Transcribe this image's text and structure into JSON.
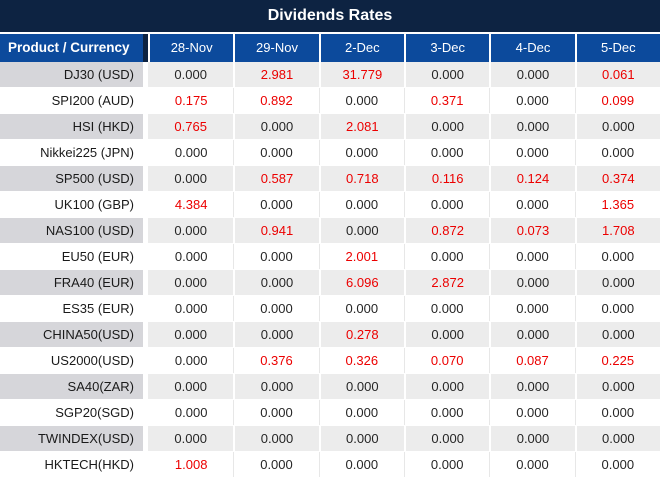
{
  "title": "Dividends Rates",
  "table": {
    "header": [
      "Product / Currency",
      "28-Nov",
      "29-Nov",
      "2-Dec",
      "3-Dec",
      "4-Dec",
      "5-Dec"
    ],
    "rows": [
      {
        "product": "DJ30 (USD)",
        "values": [
          "0.000",
          "2.981",
          "31.779",
          "0.000",
          "0.000",
          "0.061"
        ]
      },
      {
        "product": "SPI200 (AUD)",
        "values": [
          "0.175",
          "0.892",
          "0.000",
          "0.371",
          "0.000",
          "0.099"
        ]
      },
      {
        "product": "HSI (HKD)",
        "values": [
          "0.765",
          "0.000",
          "2.081",
          "0.000",
          "0.000",
          "0.000"
        ]
      },
      {
        "product": "Nikkei225 (JPN)",
        "values": [
          "0.000",
          "0.000",
          "0.000",
          "0.000",
          "0.000",
          "0.000"
        ]
      },
      {
        "product": "SP500 (USD)",
        "values": [
          "0.000",
          "0.587",
          "0.718",
          "0.116",
          "0.124",
          "0.374"
        ]
      },
      {
        "product": "UK100 (GBP)",
        "values": [
          "4.384",
          "0.000",
          "0.000",
          "0.000",
          "0.000",
          "1.365"
        ]
      },
      {
        "product": "NAS100 (USD)",
        "values": [
          "0.000",
          "0.941",
          "0.000",
          "0.872",
          "0.073",
          "1.708"
        ]
      },
      {
        "product": "EU50 (EUR)",
        "values": [
          "0.000",
          "0.000",
          "2.001",
          "0.000",
          "0.000",
          "0.000"
        ]
      },
      {
        "product": "FRA40 (EUR)",
        "values": [
          "0.000",
          "0.000",
          "6.096",
          "2.872",
          "0.000",
          "0.000"
        ]
      },
      {
        "product": "ES35 (EUR)",
        "values": [
          "0.000",
          "0.000",
          "0.000",
          "0.000",
          "0.000",
          "0.000"
        ]
      },
      {
        "product": "CHINA50(USD)",
        "values": [
          "0.000",
          "0.000",
          "0.278",
          "0.000",
          "0.000",
          "0.000"
        ]
      },
      {
        "product": "US2000(USD)",
        "values": [
          "0.000",
          "0.376",
          "0.326",
          "0.070",
          "0.087",
          "0.225"
        ]
      },
      {
        "product": "SA40(ZAR)",
        "values": [
          "0.000",
          "0.000",
          "0.000",
          "0.000",
          "0.000",
          "0.000"
        ]
      },
      {
        "product": "SGP20(SGD)",
        "values": [
          "0.000",
          "0.000",
          "0.000",
          "0.000",
          "0.000",
          "0.000"
        ]
      },
      {
        "product": "TWINDEX(USD)",
        "values": [
          "0.000",
          "0.000",
          "0.000",
          "0.000",
          "0.000",
          "0.000"
        ]
      },
      {
        "product": "HKTECH(HKD)",
        "values": [
          "1.008",
          "0.000",
          "0.000",
          "0.000",
          "0.000",
          "0.000"
        ]
      }
    ]
  },
  "colors": {
    "title_bg": "#0d2342",
    "header_bg": "#0c4a9c",
    "alt_label_bg": "#d6d6da",
    "alt_data_bg": "#ececec",
    "row_bg": "#ffffff",
    "value_nonzero": "#ec0000",
    "value_zero": "#262626"
  }
}
